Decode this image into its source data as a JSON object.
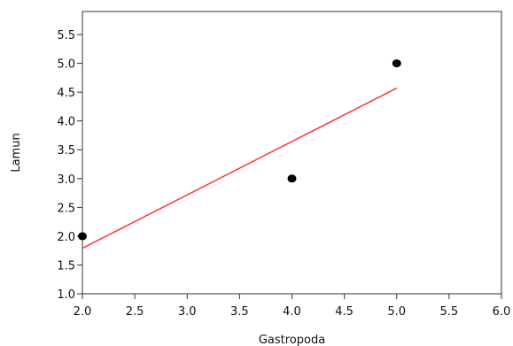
{
  "chart_data": {
    "type": "scatter",
    "title": "",
    "xlabel": "Gastropoda",
    "ylabel": "Lamun",
    "xlim": [
      2.0,
      6.0
    ],
    "ylim": [
      1.0,
      5.9
    ],
    "x_ticks": [
      "2.0",
      "2.5",
      "3.0",
      "3.5",
      "4.0",
      "4.5",
      "5.0",
      "5.5",
      "6.0"
    ],
    "y_ticks": [
      "1.0",
      "1.5",
      "2.0",
      "2.5",
      "3.0",
      "3.5",
      "4.0",
      "4.5",
      "5.0",
      "5.5"
    ],
    "grid": false,
    "points": [
      {
        "x": 2.0,
        "y": 2.0
      },
      {
        "x": 4.0,
        "y": 3.0
      },
      {
        "x": 5.0,
        "y": 5.0
      }
    ],
    "fit_line": {
      "x": [
        2.0,
        5.0
      ],
      "y": [
        1.79,
        4.57
      ]
    },
    "colors": {
      "points": "#000000",
      "fit_line": "#ff3333",
      "frame": "#333333"
    }
  }
}
